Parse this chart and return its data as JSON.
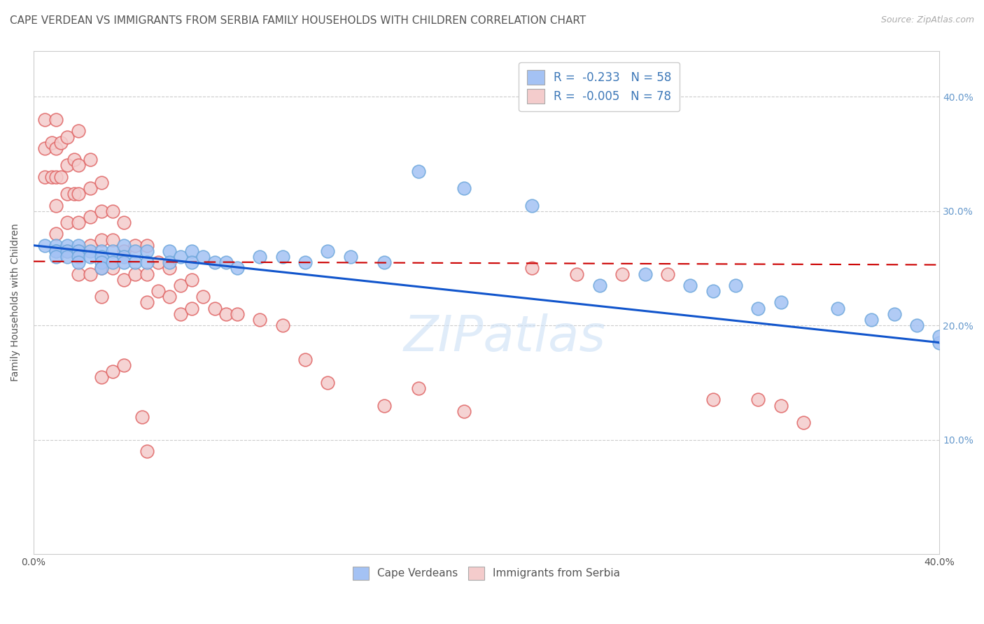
{
  "title": "CAPE VERDEAN VS IMMIGRANTS FROM SERBIA FAMILY HOUSEHOLDS WITH CHILDREN CORRELATION CHART",
  "source": "Source: ZipAtlas.com",
  "ylabel": "Family Households with Children",
  "xmin": 0.0,
  "xmax": 0.4,
  "ymin": 0.0,
  "ymax": 0.44,
  "ytick_vals": [
    0.0,
    0.1,
    0.2,
    0.3,
    0.4
  ],
  "ytick_labels_right": [
    "",
    "10.0%",
    "20.0%",
    "30.0%",
    "40.0%"
  ],
  "xtick_vals": [
    0.0,
    0.1,
    0.2,
    0.3,
    0.4
  ],
  "xtick_labels": [
    "0.0%",
    "",
    "",
    "",
    "40.0%"
  ],
  "legend_r1": "-0.233",
  "legend_n1": "58",
  "legend_r2": "-0.005",
  "legend_n2": "78",
  "blue_color": "#a4c2f4",
  "blue_edge_color": "#6fa8dc",
  "pink_color": "#f4cccc",
  "pink_edge_color": "#e06666",
  "blue_line_color": "#1155cc",
  "pink_line_color": "#cc0000",
  "watermark": "ZIPatlas",
  "blue_scatter_x": [
    0.005,
    0.01,
    0.01,
    0.01,
    0.01,
    0.015,
    0.015,
    0.015,
    0.02,
    0.02,
    0.02,
    0.02,
    0.025,
    0.025,
    0.03,
    0.03,
    0.03,
    0.03,
    0.035,
    0.035,
    0.04,
    0.04,
    0.04,
    0.045,
    0.045,
    0.05,
    0.05,
    0.06,
    0.06,
    0.065,
    0.07,
    0.07,
    0.075,
    0.08,
    0.085,
    0.09,
    0.1,
    0.11,
    0.12,
    0.13,
    0.14,
    0.155,
    0.17,
    0.19,
    0.22,
    0.25,
    0.27,
    0.29,
    0.31,
    0.3,
    0.32,
    0.33,
    0.355,
    0.37,
    0.38,
    0.39,
    0.4,
    0.4
  ],
  "blue_scatter_y": [
    0.27,
    0.27,
    0.265,
    0.265,
    0.26,
    0.27,
    0.265,
    0.26,
    0.27,
    0.265,
    0.26,
    0.255,
    0.265,
    0.26,
    0.265,
    0.26,
    0.255,
    0.25,
    0.265,
    0.255,
    0.27,
    0.26,
    0.255,
    0.265,
    0.255,
    0.265,
    0.255,
    0.265,
    0.255,
    0.26,
    0.265,
    0.255,
    0.26,
    0.255,
    0.255,
    0.25,
    0.26,
    0.26,
    0.255,
    0.265,
    0.26,
    0.255,
    0.335,
    0.32,
    0.305,
    0.235,
    0.245,
    0.235,
    0.235,
    0.23,
    0.215,
    0.22,
    0.215,
    0.205,
    0.21,
    0.2,
    0.185,
    0.19
  ],
  "pink_scatter_x": [
    0.005,
    0.005,
    0.005,
    0.008,
    0.008,
    0.01,
    0.01,
    0.01,
    0.01,
    0.01,
    0.012,
    0.012,
    0.015,
    0.015,
    0.015,
    0.015,
    0.015,
    0.018,
    0.018,
    0.02,
    0.02,
    0.02,
    0.02,
    0.02,
    0.02,
    0.025,
    0.025,
    0.025,
    0.025,
    0.025,
    0.03,
    0.03,
    0.03,
    0.03,
    0.03,
    0.035,
    0.035,
    0.035,
    0.04,
    0.04,
    0.04,
    0.045,
    0.045,
    0.05,
    0.05,
    0.05,
    0.055,
    0.055,
    0.06,
    0.06,
    0.065,
    0.065,
    0.07,
    0.07,
    0.075,
    0.08,
    0.085,
    0.09,
    0.1,
    0.11,
    0.12,
    0.13,
    0.155,
    0.17,
    0.19,
    0.22,
    0.24,
    0.26,
    0.28,
    0.3,
    0.32,
    0.33,
    0.34,
    0.03,
    0.035,
    0.04,
    0.048,
    0.05
  ],
  "pink_scatter_y": [
    0.38,
    0.355,
    0.33,
    0.36,
    0.33,
    0.38,
    0.355,
    0.33,
    0.305,
    0.28,
    0.36,
    0.33,
    0.365,
    0.34,
    0.315,
    0.29,
    0.265,
    0.345,
    0.315,
    0.37,
    0.34,
    0.315,
    0.29,
    0.265,
    0.245,
    0.345,
    0.32,
    0.295,
    0.27,
    0.245,
    0.325,
    0.3,
    0.275,
    0.25,
    0.225,
    0.3,
    0.275,
    0.25,
    0.29,
    0.265,
    0.24,
    0.27,
    0.245,
    0.27,
    0.245,
    0.22,
    0.255,
    0.23,
    0.25,
    0.225,
    0.235,
    0.21,
    0.24,
    0.215,
    0.225,
    0.215,
    0.21,
    0.21,
    0.205,
    0.2,
    0.17,
    0.15,
    0.13,
    0.145,
    0.125,
    0.25,
    0.245,
    0.245,
    0.245,
    0.135,
    0.135,
    0.13,
    0.115,
    0.155,
    0.16,
    0.165,
    0.12,
    0.09
  ],
  "blue_trend_x": [
    0.0,
    0.4
  ],
  "blue_trend_y": [
    0.27,
    0.185
  ],
  "pink_trend_x": [
    0.0,
    0.4
  ],
  "pink_trend_y": [
    0.256,
    0.253
  ],
  "grid_color": "#cccccc",
  "background_color": "#ffffff",
  "title_fontsize": 11,
  "axis_label_fontsize": 10,
  "tick_fontsize": 10
}
